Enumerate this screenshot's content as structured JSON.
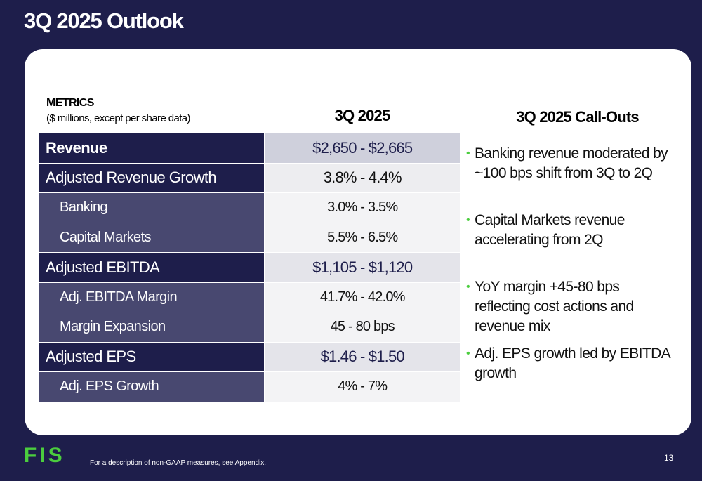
{
  "header": {
    "title": "3Q 2025 Outlook"
  },
  "table": {
    "metrics_label": "METRICS",
    "metrics_note": "($ millions, except per share data)",
    "column_header": "3Q 2025",
    "rows": [
      [
        "Revenue",
        "$2,650 - $2,665"
      ],
      [
        "Adjusted Revenue Growth",
        "3.8% - 4.4%"
      ],
      [
        "Banking",
        "3.0% - 3.5%"
      ],
      [
        "Capital Markets",
        "5.5% - 6.5%"
      ],
      [
        "Adjusted EBITDA",
        "$1,105 - $1,120"
      ],
      [
        "Adj. EBITDA Margin",
        "41.7% - 42.0%"
      ],
      [
        "Margin Expansion",
        "45 - 80 bps"
      ],
      [
        "Adjusted EPS",
        "$1.46 - $1.50"
      ],
      [
        "Adj. EPS Growth",
        "4% - 7%"
      ]
    ]
  },
  "callouts": {
    "title": "3Q 2025 Call-Outs",
    "items": [
      "Banking revenue moderated by ~100 bps shift from 3Q to 2Q",
      "Capital Markets revenue accelerating from 2Q",
      "YoY margin +45-80 bps reflecting cost actions and revenue mix",
      "Adj. EPS growth led by EBITDA growth"
    ]
  },
  "footer": {
    "logo": "FIS",
    "note": "For a description of non-GAAP measures, see Appendix.",
    "page": "13"
  }
}
